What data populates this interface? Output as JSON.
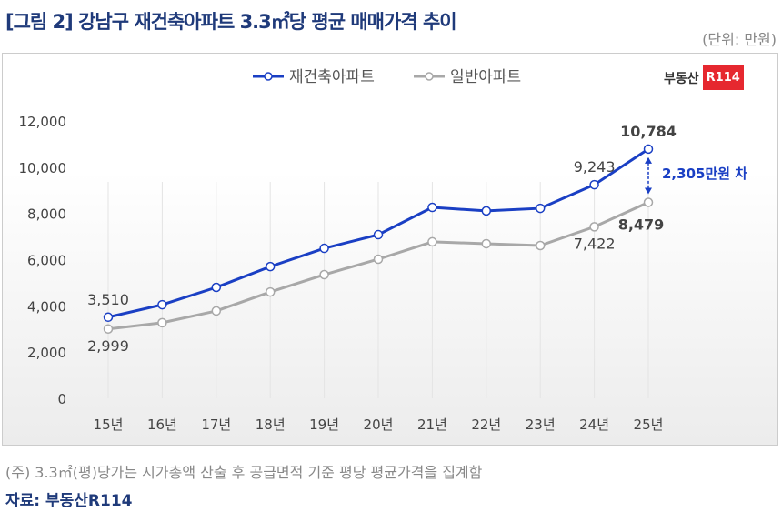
{
  "title": "[그림 2] 강남구 재건축아파트 3.3㎡당 평균 매매가격 추이",
  "unit": "(단위: 만원)",
  "logo": {
    "text": "부동산",
    "badge": "R114"
  },
  "note": "(주) 3.3㎡(평)당가는 시가총액 산출 후 공급면적 기준 평당 평균가격을 집계함",
  "source": "자료: 부동산R114",
  "chart_data": {
    "type": "line",
    "categories": [
      "15년",
      "16년",
      "17년",
      "18년",
      "19년",
      "20년",
      "21년",
      "22년",
      "23년",
      "24년",
      "25년"
    ],
    "ylim": [
      0,
      12000
    ],
    "yticks": [
      "0",
      "2,000",
      "4,000",
      "6,000",
      "8,000",
      "10,000",
      "12,000"
    ],
    "legend": "top-center",
    "series": [
      {
        "name": "재건축아파트",
        "color": "#1a3fc4",
        "values": [
          3510,
          4050,
          4800,
          5700,
          6490,
          7080,
          8260,
          8110,
          8220,
          9243,
          10784
        ],
        "labels": {
          "0": "3,510",
          "9": "9,243",
          "10": "10,784"
        }
      },
      {
        "name": "일반아파트",
        "color": "#a8a8a8",
        "values": [
          2999,
          3270,
          3780,
          4600,
          5350,
          6020,
          6770,
          6690,
          6610,
          7422,
          8479
        ],
        "labels": {
          "0": "2,999",
          "9": "7,422",
          "10": "8,479"
        }
      }
    ],
    "annotation": "2,305만원 차"
  }
}
